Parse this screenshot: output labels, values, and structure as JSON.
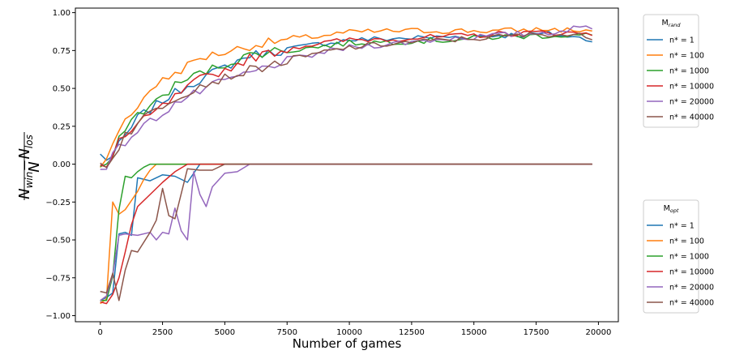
{
  "chart_data": {
    "type": "line",
    "xlabel": "Number of games",
    "ylabel": {
      "num_main_1": "N",
      "num_sub_1": "win",
      "num_minus": "−",
      "num_main_2": "N",
      "num_sub_2": "los",
      "den": "N"
    },
    "xlim": [
      -1000,
      20800
    ],
    "ylim": [
      -1.04,
      1.03
    ],
    "xticks": [
      0,
      2500,
      5000,
      7500,
      10000,
      12500,
      15000,
      17500,
      20000
    ],
    "xtick_labels": [
      "0",
      "2500",
      "5000",
      "7500",
      "10000",
      "12500",
      "15000",
      "17500",
      "20000"
    ],
    "yticks": [
      -1.0,
      -0.75,
      -0.5,
      -0.25,
      0.0,
      0.25,
      0.5,
      0.75,
      1.0
    ],
    "ytick_labels": [
      "−1.00",
      "−0.75",
      "−0.50",
      "−0.25",
      "0.00",
      "0.25",
      "0.50",
      "0.75",
      "1.00"
    ],
    "grid": false,
    "colors": [
      "#1f77b4",
      "#ff7f0e",
      "#2ca02c",
      "#d62728",
      "#9467bd",
      "#8c564b"
    ],
    "legends": [
      {
        "title_main": "M",
        "title_sub": "rand",
        "placement": "right-top",
        "entries": [
          "n* = 1",
          "n* = 100",
          "n* = 1000",
          "n* = 10000",
          "n* = 20000",
          "n* = 40000"
        ]
      },
      {
        "title_main": "M",
        "title_sub": "opt",
        "placement": "right-bottom",
        "entries": [
          "n* = 1",
          "n* = 100",
          "n* = 1000",
          "n* = 10000",
          "n* = 20000",
          "n* = 40000"
        ]
      }
    ],
    "rand_anchors": [
      {
        "x": [
          0,
          250,
          500,
          750,
          1000,
          1500,
          2000,
          2500,
          3000,
          3500,
          4000,
          5000,
          6000,
          7000,
          8000,
          9000,
          10000,
          12000,
          14000,
          16000,
          18000,
          19750
        ],
        "y": [
          0.06,
          0.04,
          0.05,
          0.12,
          0.18,
          0.3,
          0.36,
          0.42,
          0.47,
          0.52,
          0.56,
          0.64,
          0.72,
          0.74,
          0.77,
          0.8,
          0.82,
          0.83,
          0.84,
          0.85,
          0.86,
          0.82
        ]
      },
      {
        "x": [
          0,
          250,
          500,
          750,
          1000,
          1500,
          2000,
          2500,
          3000,
          3500,
          4000,
          5000,
          6000,
          7000,
          8000,
          9000,
          10000,
          12000,
          14000,
          16000,
          18000,
          19750
        ],
        "y": [
          -0.03,
          0.07,
          0.15,
          0.2,
          0.28,
          0.38,
          0.5,
          0.55,
          0.6,
          0.65,
          0.7,
          0.74,
          0.78,
          0.81,
          0.83,
          0.85,
          0.87,
          0.88,
          0.88,
          0.88,
          0.89,
          0.88
        ]
      },
      {
        "x": [
          0,
          250,
          500,
          750,
          1000,
          1500,
          2000,
          2500,
          3000,
          3500,
          4000,
          5000,
          6000,
          7000,
          8000,
          9000,
          10000,
          12000,
          14000,
          16000,
          18000,
          19750
        ],
        "y": [
          -0.02,
          -0.03,
          0.05,
          0.15,
          0.25,
          0.33,
          0.38,
          0.45,
          0.52,
          0.56,
          0.6,
          0.66,
          0.72,
          0.75,
          0.76,
          0.78,
          0.8,
          0.81,
          0.82,
          0.84,
          0.85,
          0.85
        ]
      },
      {
        "x": [
          0,
          250,
          500,
          750,
          1000,
          1500,
          2000,
          2500,
          3000,
          3500,
          4000,
          5000,
          6000,
          7000,
          8000,
          9000,
          10000,
          12000,
          14000,
          16000,
          18000,
          19750
        ],
        "y": [
          -0.03,
          -0.02,
          0.08,
          0.16,
          0.18,
          0.25,
          0.32,
          0.38,
          0.44,
          0.5,
          0.56,
          0.62,
          0.7,
          0.74,
          0.78,
          0.8,
          0.82,
          0.83,
          0.84,
          0.86,
          0.87,
          0.86
        ]
      },
      {
        "x": [
          0,
          250,
          500,
          750,
          1000,
          1500,
          2000,
          2500,
          3000,
          3500,
          4000,
          5000,
          6000,
          7000,
          8000,
          9000,
          10000,
          12000,
          14000,
          16000,
          18000,
          19750
        ],
        "y": [
          -0.02,
          0.0,
          0.05,
          0.1,
          0.15,
          0.22,
          0.28,
          0.34,
          0.4,
          0.44,
          0.48,
          0.55,
          0.6,
          0.66,
          0.7,
          0.74,
          0.77,
          0.8,
          0.83,
          0.85,
          0.87,
          0.91
        ]
      },
      {
        "x": [
          0,
          250,
          500,
          750,
          1000,
          1500,
          2000,
          2500,
          3000,
          3500,
          4000,
          5000,
          6000,
          7000,
          8000,
          9000,
          10000,
          12000,
          14000,
          16000,
          18000,
          19750
        ],
        "y": [
          0.0,
          -0.02,
          0.06,
          0.12,
          0.2,
          0.26,
          0.34,
          0.39,
          0.44,
          0.48,
          0.52,
          0.57,
          0.62,
          0.66,
          0.7,
          0.74,
          0.77,
          0.8,
          0.82,
          0.84,
          0.86,
          0.84
        ]
      }
    ],
    "opt_anchors": [
      {
        "x": [
          0,
          250,
          500,
          750,
          1000,
          1250,
          1500,
          2000,
          2500,
          3000,
          3500,
          4000,
          19750
        ],
        "y": [
          -0.9,
          -0.88,
          -0.85,
          -0.46,
          -0.45,
          -0.47,
          -0.09,
          -0.11,
          -0.07,
          -0.08,
          -0.12,
          0.0,
          0.0
        ]
      },
      {
        "x": [
          0,
          250,
          500,
          750,
          1000,
          1250,
          1500,
          1750,
          2000,
          2250,
          19750
        ],
        "y": [
          -0.92,
          -0.89,
          -0.25,
          -0.33,
          -0.3,
          -0.24,
          -0.18,
          -0.1,
          -0.04,
          0.0,
          0.0
        ]
      },
      {
        "x": [
          0,
          250,
          500,
          750,
          1000,
          1250,
          1500,
          1750,
          2000,
          19750
        ],
        "y": [
          -0.9,
          -0.9,
          -0.74,
          -0.3,
          -0.08,
          -0.09,
          -0.05,
          -0.02,
          0.0,
          0.0
        ]
      },
      {
        "x": [
          0,
          250,
          500,
          750,
          1000,
          1250,
          1500,
          2000,
          2500,
          3000,
          3500,
          4000,
          19750
        ],
        "y": [
          -0.91,
          -0.92,
          -0.86,
          -0.75,
          -0.58,
          -0.4,
          -0.28,
          -0.2,
          -0.12,
          -0.05,
          0.0,
          0.0,
          0.0
        ]
      },
      {
        "x": [
          0,
          250,
          500,
          750,
          1000,
          1500,
          2000,
          2250,
          2500,
          2750,
          3000,
          3250,
          3500,
          3750,
          4000,
          4250,
          4500,
          5000,
          5500,
          6000,
          19750
        ],
        "y": [
          -0.9,
          -0.87,
          -0.73,
          -0.47,
          -0.46,
          -0.47,
          -0.45,
          -0.5,
          -0.45,
          -0.46,
          -0.29,
          -0.44,
          -0.5,
          -0.05,
          -0.2,
          -0.28,
          -0.15,
          -0.06,
          -0.05,
          0.0,
          0.0
        ]
      },
      {
        "x": [
          0,
          250,
          500,
          750,
          1000,
          1250,
          1500,
          2000,
          2250,
          2500,
          2750,
          3000,
          3500,
          4000,
          4500,
          5000,
          19750
        ],
        "y": [
          -0.84,
          -0.85,
          -0.72,
          -0.9,
          -0.7,
          -0.57,
          -0.58,
          -0.45,
          -0.37,
          -0.16,
          -0.34,
          -0.36,
          -0.03,
          -0.04,
          -0.04,
          0.0,
          0.0
        ]
      }
    ]
  }
}
